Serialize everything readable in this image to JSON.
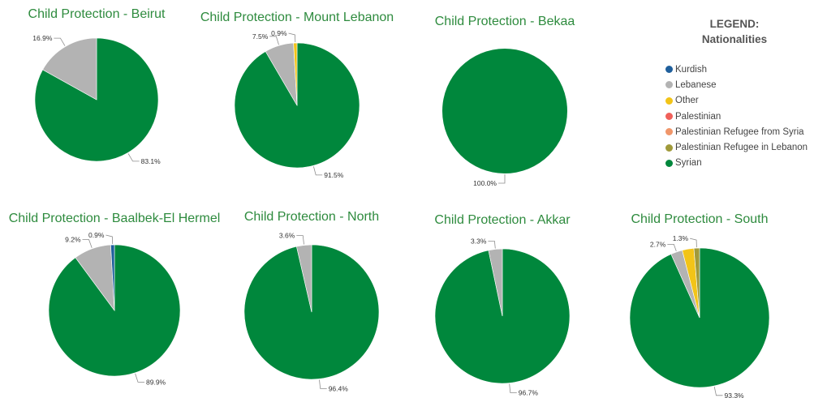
{
  "legend": {
    "title_line1": "LEGEND:",
    "title_line2": "Nationalities",
    "items": [
      {
        "label": "Kurdish",
        "color": "#1f5f9c"
      },
      {
        "label": "Lebanese",
        "color": "#b3b3b3"
      },
      {
        "label": "Other",
        "color": "#f2c418"
      },
      {
        "label": "Palestinian",
        "color": "#f0605a"
      },
      {
        "label": "Palestinian Refugee from Syria",
        "color": "#f0966a"
      },
      {
        "label": "Palestinian Refugee in Lebanon",
        "color": "#a09a3a"
      },
      {
        "label": "Syrian",
        "color": "#00873c"
      }
    ]
  },
  "chart_data": [
    {
      "type": "pie",
      "title": "Child Protection - Beirut",
      "slices": [
        {
          "category": "Syrian",
          "value": 83.1,
          "label": "83.1%"
        },
        {
          "category": "Lebanese",
          "value": 16.9,
          "label": "16.9%"
        }
      ]
    },
    {
      "type": "pie",
      "title": "Child Protection - Mount Lebanon",
      "slices": [
        {
          "category": "Syrian",
          "value": 91.5,
          "label": "91.5%"
        },
        {
          "category": "Lebanese",
          "value": 7.5,
          "label": "7.5%"
        },
        {
          "category": "Other",
          "value": 0.9,
          "label": "0.9%"
        }
      ]
    },
    {
      "type": "pie",
      "title": "Child Protection - Bekaa",
      "slices": [
        {
          "category": "Syrian",
          "value": 100.0,
          "label": "100.0%"
        }
      ]
    },
    {
      "type": "pie",
      "title": "Child Protection - Baalbek-El Hermel",
      "slices": [
        {
          "category": "Syrian",
          "value": 89.9,
          "label": "89.9%"
        },
        {
          "category": "Lebanese",
          "value": 9.2,
          "label": "9.2%"
        },
        {
          "category": "Kurdish",
          "value": 0.9,
          "label": "0.9%"
        }
      ]
    },
    {
      "type": "pie",
      "title": "Child Protection - North",
      "slices": [
        {
          "category": "Syrian",
          "value": 96.4,
          "label": "96.4%"
        },
        {
          "category": "Lebanese",
          "value": 3.6,
          "label": "3.6%"
        }
      ]
    },
    {
      "type": "pie",
      "title": "Child Protection - Akkar",
      "slices": [
        {
          "category": "Syrian",
          "value": 96.7,
          "label": "96.7%"
        },
        {
          "category": "Lebanese",
          "value": 3.3,
          "label": "3.3%"
        }
      ]
    },
    {
      "type": "pie",
      "title": "Child Protection - South",
      "slices": [
        {
          "category": "Syrian",
          "value": 93.3,
          "label": "93.3%"
        },
        {
          "category": "Lebanese",
          "value": 2.7,
          "label": "2.7%"
        },
        {
          "category": "Other",
          "value": 2.7,
          "label": ""
        },
        {
          "category": "Palestinian Refugee in Lebanon",
          "value": 1.3,
          "label": "1.3%"
        }
      ]
    }
  ]
}
